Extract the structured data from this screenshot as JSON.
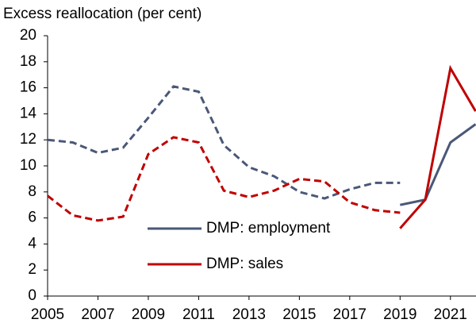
{
  "chart_data": {
    "type": "line",
    "title": "Excess reallocation (per cent)",
    "x": [
      2005,
      2006,
      2007,
      2008,
      2009,
      2010,
      2011,
      2012,
      2013,
      2014,
      2015,
      2016,
      2017,
      2018,
      2019,
      2020,
      2021,
      2022
    ],
    "series": [
      {
        "name": "DMP: employment",
        "color": "#4a5878",
        "dashed": false,
        "values": [
          null,
          null,
          null,
          null,
          null,
          null,
          null,
          null,
          null,
          null,
          null,
          null,
          null,
          null,
          7.0,
          7.4,
          11.8,
          13.2
        ]
      },
      {
        "name": "DMP: sales",
        "color": "#c00000",
        "dashed": false,
        "values": [
          null,
          null,
          null,
          null,
          null,
          null,
          null,
          null,
          null,
          null,
          null,
          null,
          null,
          null,
          5.2,
          7.4,
          17.5,
          14.2
        ]
      },
      {
        "color": "#4a5878",
        "dashed": true,
        "values": [
          12.0,
          11.8,
          11.0,
          11.4,
          13.7,
          16.1,
          15.7,
          11.6,
          9.9,
          9.2,
          8.0,
          7.5,
          8.2,
          8.7,
          8.7,
          null,
          null,
          null
        ]
      },
      {
        "color": "#c00000",
        "dashed": true,
        "values": [
          7.7,
          6.2,
          5.8,
          6.1,
          10.9,
          12.2,
          11.8,
          8.1,
          7.6,
          8.1,
          9.0,
          8.8,
          7.2,
          6.6,
          6.4,
          null,
          null,
          null
        ]
      }
    ],
    "xlim": [
      2005,
      2022
    ],
    "xticks": [
      2005,
      2007,
      2009,
      2011,
      2013,
      2015,
      2017,
      2019,
      2021
    ],
    "ylim": [
      0,
      20
    ],
    "yticks": [
      0,
      2,
      4,
      6,
      8,
      10,
      12,
      14,
      16,
      18,
      20
    ],
    "grid": false,
    "legend": "center"
  }
}
